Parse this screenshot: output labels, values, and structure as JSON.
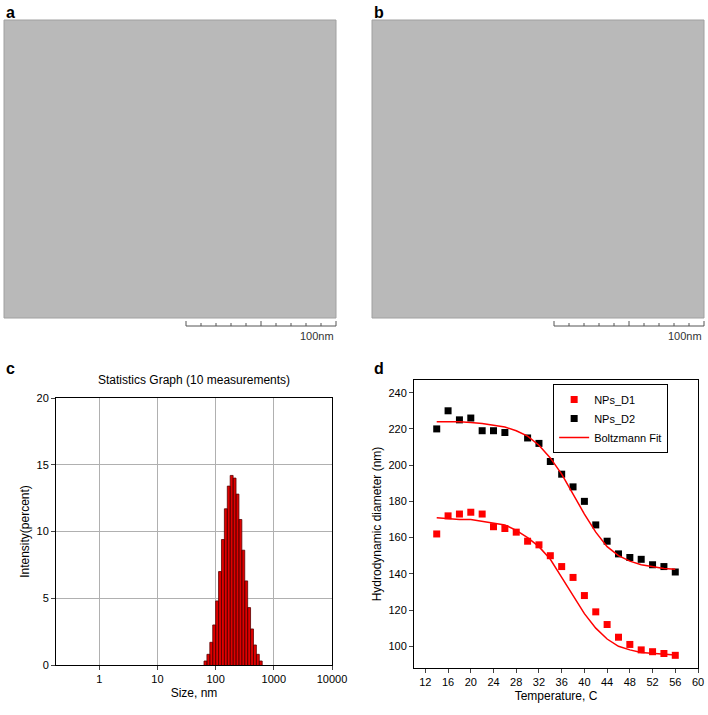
{
  "chart_data": [
    {
      "type": "image",
      "label": "a",
      "scale_bar": "100nm"
    },
    {
      "type": "image",
      "label": "b",
      "scale_bar": "100nm"
    },
    {
      "type": "histogram",
      "label": "c",
      "title": "Statistics Graph (10 measurements)",
      "x_label": "Size, nm",
      "y_label": "Intensity(percent)",
      "bins": [
        63.1,
        70.8,
        79.4,
        89.1,
        100,
        112.2,
        125.9,
        141.3,
        158.5,
        177.8,
        199.5,
        223.9,
        251.2,
        281.8,
        316.2,
        354.8,
        398.1,
        446.7,
        501.2,
        562.3,
        631.0
      ],
      "counts": [
        0.3,
        0.8,
        1.7,
        3.0,
        4.8,
        7.0,
        9.4,
        11.7,
        13.4,
        14.2,
        14.0,
        12.8,
        10.9,
        8.6,
        6.3,
        4.3,
        2.7,
        1.5,
        0.8,
        0.3
      ],
      "color": "#e00000",
      "log": "x",
      "xlim": [
        0.18,
        10000
      ],
      "xticks": [
        1,
        10,
        100,
        1000,
        10000
      ],
      "ylim": [
        0,
        20
      ],
      "yticks": [
        0,
        5,
        10,
        15,
        20
      ],
      "grid": true
    },
    {
      "type": "scatter",
      "label": "d",
      "x_label": "Temperature, C",
      "y_label": "Hydrodynamic diameter (nm)",
      "xlim": [
        10,
        60
      ],
      "xticks": [
        12,
        16,
        20,
        24,
        28,
        32,
        36,
        40,
        44,
        48,
        52,
        56,
        60
      ],
      "ylim": [
        88,
        247
      ],
      "yticks": [
        100,
        120,
        140,
        160,
        180,
        200,
        220,
        240
      ],
      "legend": "top",
      "grid": false,
      "series": [
        {
          "name": "NPs_D1",
          "color": "#ff0000",
          "marker": "square",
          "x": [
            14,
            16,
            18,
            20,
            22,
            24,
            26,
            28,
            30,
            32,
            34,
            36,
            38,
            40,
            42,
            44,
            46,
            48,
            50,
            52,
            54,
            56
          ],
          "values": [
            162,
            172,
            173,
            174,
            173,
            166,
            165,
            163,
            158,
            156,
            150,
            144,
            138,
            128,
            119,
            112,
            105,
            101,
            98,
            97,
            96,
            95
          ]
        },
        {
          "name": "NPs_D2",
          "color": "#000000",
          "marker": "square",
          "x": [
            14,
            16,
            18,
            20,
            22,
            24,
            26,
            30,
            32,
            34,
            36,
            38,
            40,
            42,
            44,
            46,
            48,
            50,
            52,
            54,
            56
          ],
          "values": [
            220,
            230,
            225,
            226,
            219,
            219,
            218,
            215,
            212,
            202,
            195,
            188,
            180,
            167,
            158,
            151,
            149,
            148,
            145,
            144,
            141
          ]
        },
        {
          "name": "Boltzmann Fit",
          "type": "line",
          "color": "#ff0000",
          "line_style": "solid",
          "x": [
            14,
            16,
            18,
            20,
            22,
            24,
            26,
            28,
            30,
            32,
            34,
            36,
            38,
            40,
            42,
            44,
            46,
            48,
            50,
            52,
            54,
            56,
            null,
            14,
            16,
            18,
            20,
            22,
            24,
            26,
            28,
            30,
            32,
            34,
            36,
            38,
            40,
            42,
            44,
            46,
            48,
            50,
            52,
            54,
            56
          ],
          "values": [
            171,
            170.5,
            170,
            170,
            169,
            168,
            167,
            164,
            160,
            155,
            148,
            138,
            128,
            118,
            110,
            104,
            100,
            98,
            96.5,
            96,
            95.5,
            95.2,
            null,
            224,
            224,
            224,
            223.5,
            223,
            222,
            221,
            219,
            216,
            211,
            204,
            195,
            184,
            173,
            163,
            155,
            150,
            147,
            145,
            144,
            143,
            142.5
          ]
        }
      ]
    }
  ]
}
